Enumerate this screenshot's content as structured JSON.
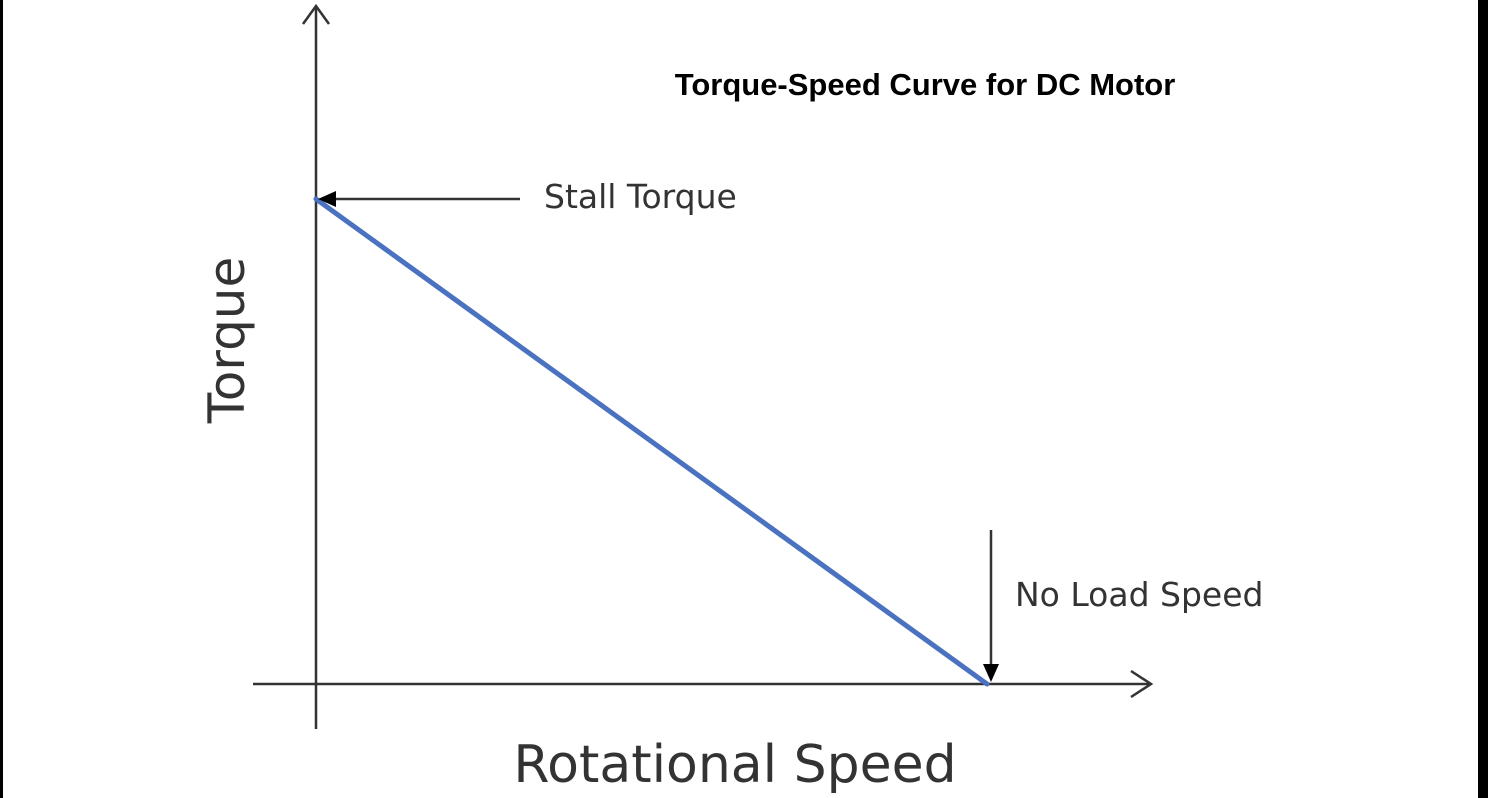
{
  "chart_data": {
    "type": "line",
    "title": "Torque-Speed Curve for DC Motor",
    "xlabel": "Rotational Speed",
    "ylabel": "Torque",
    "xlim": [
      0,
      1
    ],
    "ylim": [
      0,
      1
    ],
    "grid": false,
    "series": [
      {
        "x": [
          0,
          1
        ],
        "y": [
          1,
          0
        ],
        "color": "#4a72c0"
      }
    ],
    "annotations": [
      {
        "label": "Stall Torque",
        "x": 0,
        "y": 1
      },
      {
        "label": "No Load Speed",
        "x": 1,
        "y": 0
      }
    ]
  },
  "colors": {
    "curve": "#4a72c0",
    "axes": "#333333",
    "border": "#000000"
  }
}
